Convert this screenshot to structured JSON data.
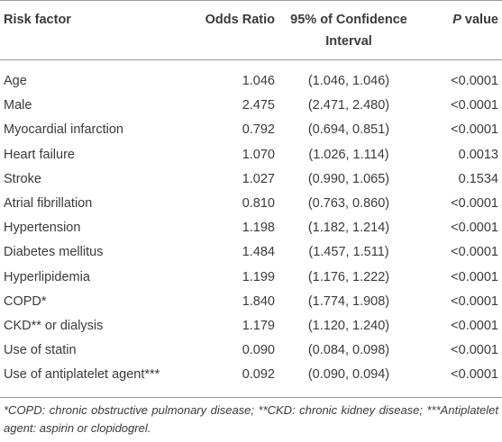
{
  "table": {
    "header": [
      "Risk factor",
      "Odds Ratio",
      "95% of Confidence Interval",
      "P value"
    ],
    "rows": [
      [
        "Age",
        "1.046",
        "(1.046, 1.046)",
        "<0.0001"
      ],
      [
        "Male",
        "2.475",
        "(2.471, 2.480)",
        "<0.0001"
      ],
      [
        "Myocardial infarction",
        "0.792",
        "(0.694, 0.851)",
        "<0.0001"
      ],
      [
        "Heart failure",
        "1.070",
        "(1.026, 1.114)",
        "0.0013"
      ],
      [
        "Stroke",
        "1.027",
        "(0.990, 1.065)",
        "0.1534"
      ],
      [
        "Atrial fibrillation",
        "0.810",
        "(0.763, 0.860)",
        "<0.0001"
      ],
      [
        "Hypertension",
        "1.198",
        "(1.182, 1.214)",
        "<0.0001"
      ],
      [
        "Diabetes mellitus",
        "1.484",
        "(1.457, 1.511)",
        "<0.0001"
      ],
      [
        "Hyperlipidemia",
        "1.199",
        "(1.176, 1.222)",
        "<0.0001"
      ],
      [
        "COPD*",
        "1.840",
        "(1.774, 1.908)",
        "<0.0001"
      ],
      [
        "CKD** or dialysis",
        "1.179",
        "(1.120, 1.240)",
        "<0.0001"
      ],
      [
        "Use of statin",
        "0.090",
        "(0.084, 0.098)",
        "<0.0001"
      ],
      [
        "Use of antiplatelet agent***",
        "0.092",
        "(0.090, 0.094)",
        "<0.0001"
      ]
    ],
    "footnote": "*COPD: chronic obstructive pulmonary disease; **CKD: chronic kidney disease; ***Antiplatelet agent: aspirin or clopidogrel."
  }
}
